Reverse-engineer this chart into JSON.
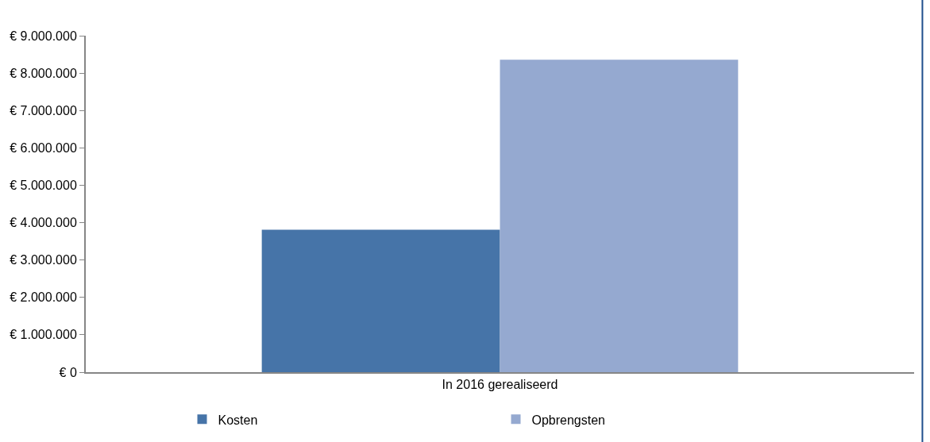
{
  "chart_data": {
    "type": "bar",
    "categories": [
      "In 2016 gerealiseerd"
    ],
    "series": [
      {
        "name": "Kosten",
        "color": "#4674a8",
        "values": [
          3810000
        ]
      },
      {
        "name": "Opbrengsten",
        "color": "#95a9d0",
        "values": [
          8360000
        ]
      }
    ],
    "ylim": [
      0,
      9000000
    ],
    "yticks": [
      {
        "value": 0,
        "label": "€ 0"
      },
      {
        "value": 1000000,
        "label": "€ 1.000.000"
      },
      {
        "value": 2000000,
        "label": "€ 2.000.000"
      },
      {
        "value": 3000000,
        "label": "€ 3.000.000"
      },
      {
        "value": 4000000,
        "label": "€ 4.000.000"
      },
      {
        "value": 5000000,
        "label": "€ 5.000.000"
      },
      {
        "value": 6000000,
        "label": "€ 6.000.000"
      },
      {
        "value": 7000000,
        "label": "€ 7.000.000"
      },
      {
        "value": 8000000,
        "label": "€ 8.000.000"
      },
      {
        "value": 9000000,
        "label": "€ 9.000.000"
      }
    ],
    "grid": false,
    "legend": "bottom"
  }
}
